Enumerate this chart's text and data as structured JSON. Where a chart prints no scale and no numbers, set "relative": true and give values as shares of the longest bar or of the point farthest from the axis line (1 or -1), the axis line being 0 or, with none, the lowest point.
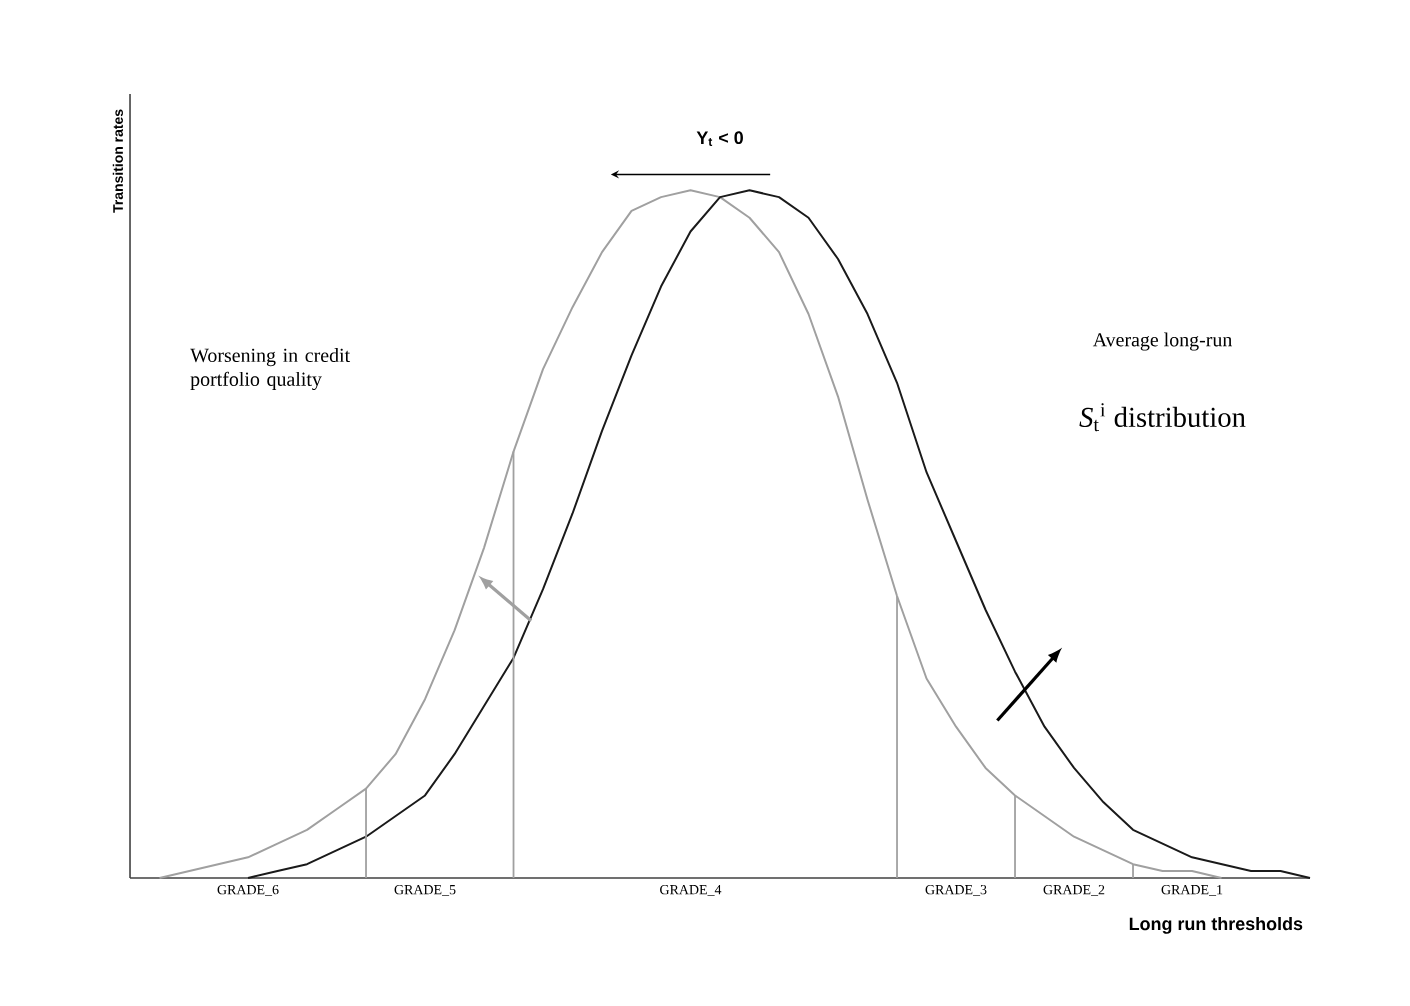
{
  "chart_data": {
    "type": "line",
    "relative": true,
    "xlabel": "Long run thresholds",
    "ylabel": "Transition rates",
    "marker": "none",
    "categories": [
      null,
      null,
      null,
      null,
      "GRADE_6",
      null,
      null,
      null,
      null,
      null,
      "GRADE_5",
      null,
      null,
      null,
      null,
      null,
      null,
      null,
      null,
      "GRADE_4",
      null,
      null,
      null,
      null,
      null,
      null,
      null,
      null,
      "GRADE_3",
      null,
      null,
      null,
      "GRADE_2",
      null,
      null,
      null,
      "GRADE_1",
      null,
      null,
      null,
      null
    ],
    "series": [
      {
        "color": "#a0a0a0",
        "values": [
          null,
          0.0,
          0.01,
          0.02,
          0.03,
          0.05,
          0.07,
          0.1,
          0.13,
          0.18,
          0.26,
          0.36,
          0.48,
          0.62,
          0.74,
          0.83,
          0.91,
          0.97,
          0.99,
          1.0,
          0.99,
          0.96,
          0.91,
          0.82,
          0.7,
          0.55,
          0.41,
          0.29,
          0.22,
          0.16,
          0.12,
          0.09,
          0.06,
          0.04,
          0.02,
          0.01,
          0.01,
          0.0,
          null,
          null,
          null
        ]
      },
      {
        "color": "#1a1a1a",
        "values": [
          null,
          null,
          null,
          null,
          0.0,
          0.01,
          0.02,
          0.04,
          0.06,
          0.09,
          0.12,
          0.18,
          0.25,
          0.32,
          0.42,
          0.53,
          0.65,
          0.76,
          0.86,
          0.94,
          0.99,
          1.0,
          0.99,
          0.96,
          0.9,
          0.82,
          0.72,
          0.59,
          0.49,
          0.39,
          0.3,
          0.22,
          0.16,
          0.11,
          0.07,
          0.05,
          0.03,
          0.02,
          0.01,
          0.01,
          0.0
        ]
      },
      {
        "type": "bar",
        "color": "#a0a0a0",
        "values": [
          null,
          null,
          null,
          null,
          null,
          null,
          null,
          null,
          0.13,
          null,
          null,
          null,
          null,
          0.62,
          null,
          null,
          null,
          null,
          null,
          null,
          null,
          null,
          null,
          null,
          null,
          null,
          0.41,
          null,
          null,
          null,
          0.12,
          null,
          null,
          null,
          0.02,
          null,
          null,
          null,
          null,
          null,
          null
        ]
      }
    ],
    "annotations": [
      "Y$_{t}$ < 0",
      "Worsening in credit portfolio quality",
      "Average long-run",
      "*S*$_{t}$$^{i}$ distribution"
    ]
  }
}
